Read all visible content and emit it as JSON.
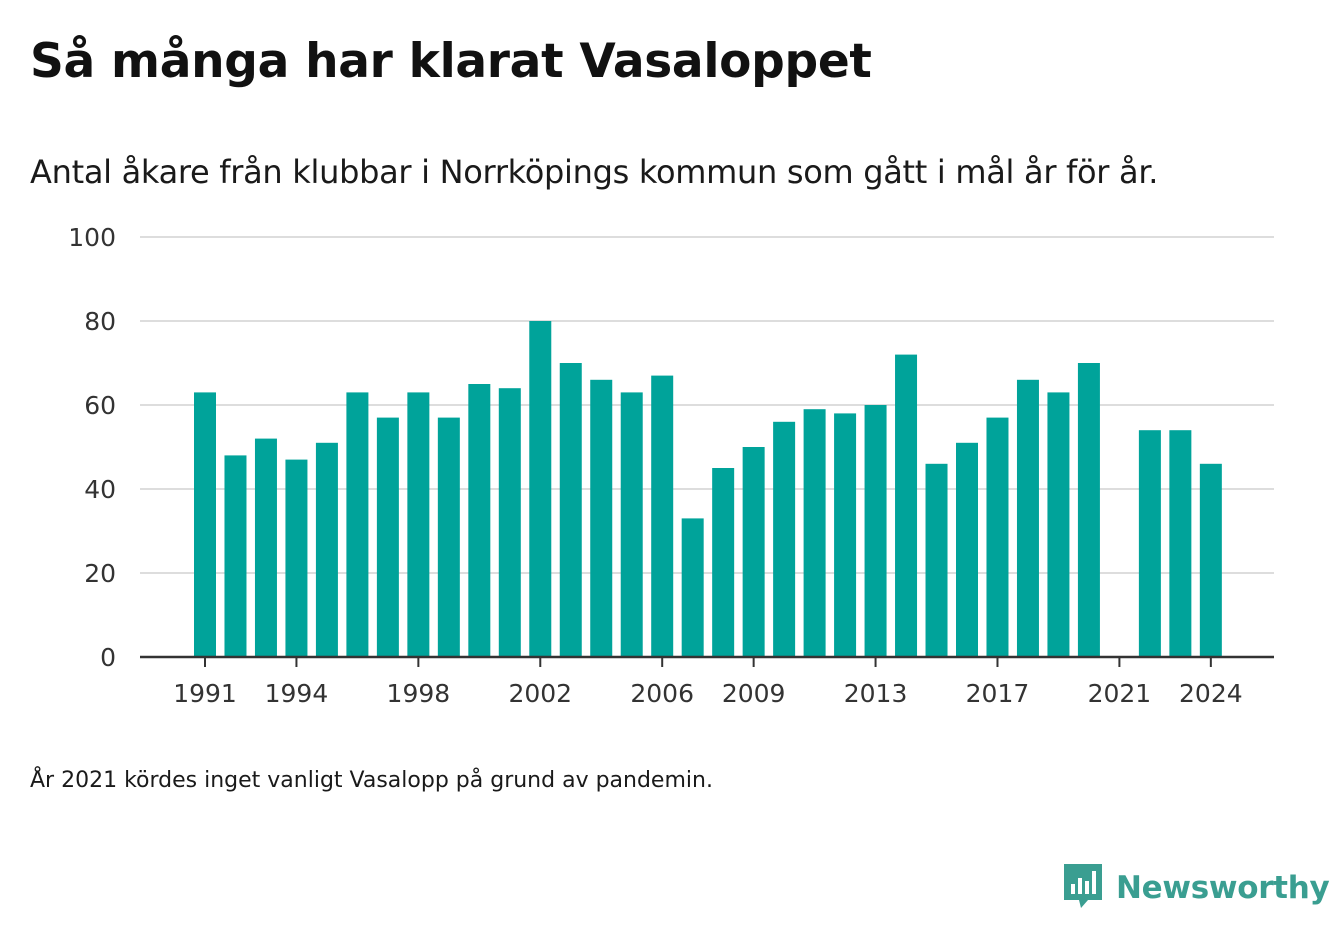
{
  "header": {
    "title": "Så många har klarat Vasaloppet",
    "subtitle": "Antal åkare från klubbar i Norrköpings kommun som gått i mål år för år."
  },
  "footer": {
    "note": "År 2021 kördes inget vanligt Vasalopp på grund av pandemin.",
    "brand": "Newsworthy",
    "brand_icon": "bar-chart-speech-bubble-icon"
  },
  "colors": {
    "bar": "#00a39a",
    "brand": "#3a9e91",
    "grid": "#dddddd",
    "axis": "#333333"
  },
  "chart_data": {
    "type": "bar",
    "title": "Så många har klarat Vasaloppet",
    "subtitle": "Antal åkare från klubbar i Norrköpings kommun som gått i mål år för år.",
    "xlabel": "",
    "ylabel": "",
    "ylim": [
      0,
      100
    ],
    "yticks": [
      0,
      20,
      40,
      60,
      80,
      100
    ],
    "xticks": [
      "1991",
      "1994",
      "1998",
      "2002",
      "2006",
      "2009",
      "2013",
      "2017",
      "2021",
      "2024"
    ],
    "grid": true,
    "categories": [
      "1991",
      "1992",
      "1993",
      "1994",
      "1995",
      "1996",
      "1997",
      "1998",
      "1999",
      "2000",
      "2001",
      "2002",
      "2003",
      "2004",
      "2005",
      "2006",
      "2007",
      "2008",
      "2009",
      "2010",
      "2011",
      "2012",
      "2013",
      "2014",
      "2015",
      "2016",
      "2017",
      "2018",
      "2019",
      "2020",
      "2021",
      "2022",
      "2023",
      "2024"
    ],
    "values": [
      63,
      48,
      52,
      47,
      51,
      63,
      57,
      63,
      57,
      65,
      64,
      80,
      70,
      66,
      63,
      67,
      33,
      45,
      50,
      56,
      59,
      58,
      60,
      72,
      46,
      51,
      57,
      66,
      63,
      70,
      null,
      54,
      54,
      46
    ]
  }
}
